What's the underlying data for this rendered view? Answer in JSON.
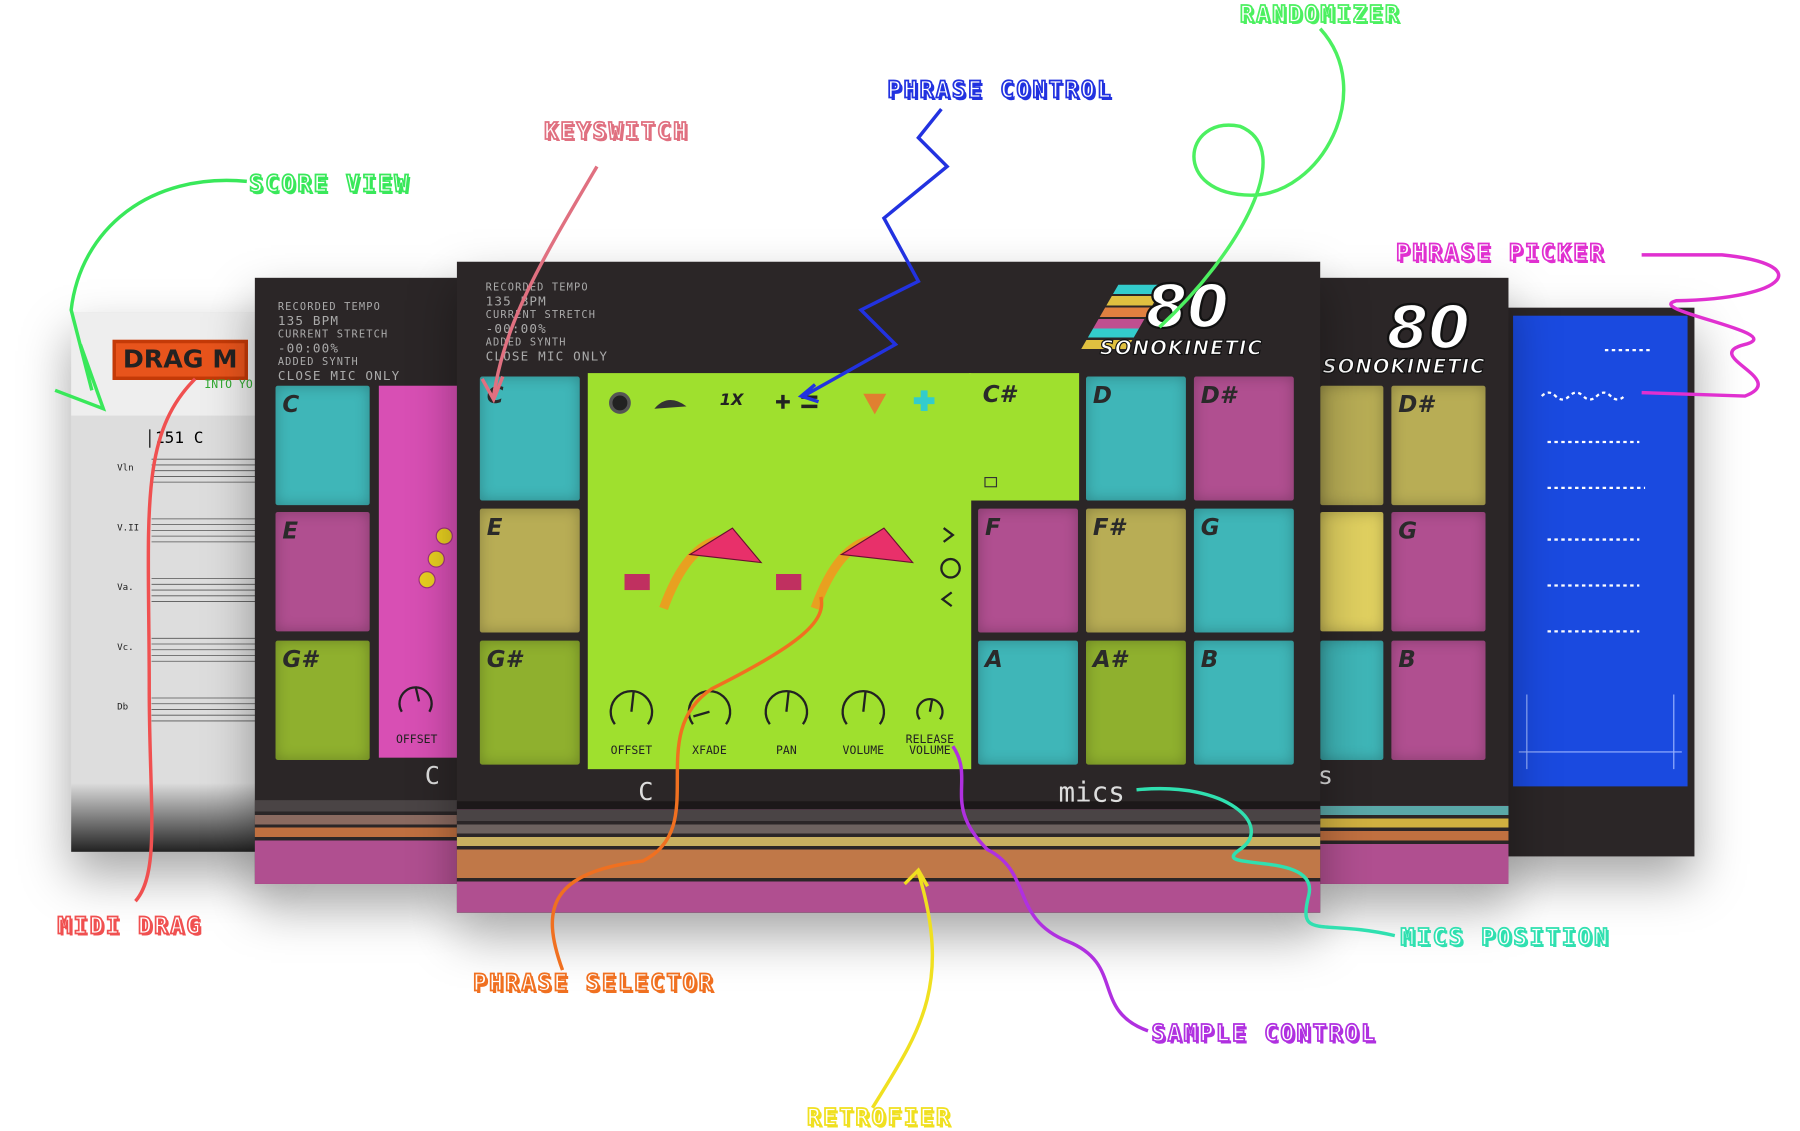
{
  "annotations": [
    {
      "label": "SCORE VIEW"
    },
    {
      "label": "KEYSWITCH"
    },
    {
      "label": "PHRASE CONTROL"
    },
    {
      "label": "RANDOMIZER"
    },
    {
      "label": "PHRASE PICKER"
    },
    {
      "label": "MIDI DRAG"
    },
    {
      "label": "PHRASE SELECTOR"
    },
    {
      "label": "RETROFIER"
    },
    {
      "label": "SAMPLE CONTROL"
    },
    {
      "label": "MICS POSITION"
    }
  ],
  "score_panel": {
    "banner": "DRAG M",
    "banner_sub": "INTO YO",
    "measure": "151",
    "key": "C",
    "staves": [
      "Vln",
      "V.II",
      "Va.",
      "Vc.",
      "Db"
    ]
  },
  "left_panel": {
    "info": [
      "RECORDED TEMPO",
      "135 BPM",
      "CURRENT STRETCH",
      "-00:00%",
      "ADDED SYNTH",
      "CLOSE MIC ONLY"
    ],
    "keys": [
      "C",
      "E",
      "G#"
    ],
    "knob": "OFFSET",
    "footer": "C"
  },
  "main_panel": {
    "info": [
      "RECORDED TEMPO",
      "135 BPM",
      "CURRENT STRETCH",
      "-00:00%",
      "ADDED SYNTH",
      "CLOSE MIC ONLY"
    ],
    "keys": [
      "C",
      "E",
      "G#",
      "C#",
      "D",
      "D#",
      "F",
      "F#",
      "G",
      "A",
      "A#",
      "B"
    ],
    "speed": "1X",
    "knobs": [
      "OFFSET",
      "XFADE",
      "PAN",
      "VOLUME",
      "RELEASE VOLUME"
    ],
    "footer": "C",
    "mics": "mics",
    "logo_number": "80",
    "logo_brand": "SONOKINETIC"
  },
  "right_panel": {
    "keys": [
      "D#",
      "G",
      "B"
    ],
    "logo_number": "80",
    "logo_brand": "SONOKINETIC",
    "footer": "s"
  }
}
